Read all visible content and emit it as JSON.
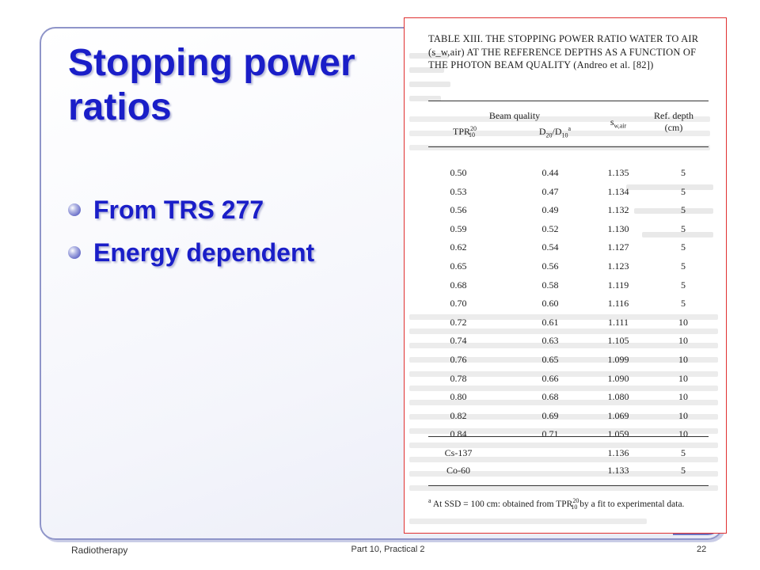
{
  "slide": {
    "title": "Stopping power ratios",
    "bullets": [
      "From TRS 277",
      "Energy dependent"
    ]
  },
  "footer": {
    "left": "Radiotherapy",
    "center": "Part 10, Practical 2",
    "page": "22"
  },
  "table": {
    "title": "TABLE XIII. THE STOPPING POWER RATIO WATER TO AIR (s_w,air) AT THE REFERENCE DEPTHS AS A FUNCTION OF THE PHOTON BEAM QUALITY (Andreo et al. [82])",
    "header": {
      "beam_quality": "Beam quality",
      "tpr": "TPR",
      "tpr_sup": "20",
      "tpr_sub": "10",
      "d20": "D",
      "d20_sub": "20",
      "d10": "/D",
      "d10_sub": "10",
      "d_sup": "a",
      "s": "s",
      "s_sub": "w,air",
      "ref_depth": "Ref. depth",
      "ref_unit": "(cm)"
    },
    "rows": [
      {
        "tpr": "0.50",
        "d": "0.44",
        "s": "1.135",
        "depth": "5"
      },
      {
        "tpr": "0.53",
        "d": "0.47",
        "s": "1.134",
        "depth": "5"
      },
      {
        "tpr": "0.56",
        "d": "0.49",
        "s": "1.132",
        "depth": "5"
      },
      {
        "tpr": "0.59",
        "d": "0.52",
        "s": "1.130",
        "depth": "5"
      },
      {
        "tpr": "0.62",
        "d": "0.54",
        "s": "1.127",
        "depth": "5"
      },
      {
        "tpr": "0.65",
        "d": "0.56",
        "s": "1.123",
        "depth": "5"
      },
      {
        "tpr": "0.68",
        "d": "0.58",
        "s": "1.119",
        "depth": "5"
      },
      {
        "tpr": "0.70",
        "d": "0.60",
        "s": "1.116",
        "depth": "5"
      },
      {
        "tpr": "0.72",
        "d": "0.61",
        "s": "1.111",
        "depth": "10"
      },
      {
        "tpr": "0.74",
        "d": "0.63",
        "s": "1.105",
        "depth": "10"
      },
      {
        "tpr": "0.76",
        "d": "0.65",
        "s": "1.099",
        "depth": "10"
      },
      {
        "tpr": "0.78",
        "d": "0.66",
        "s": "1.090",
        "depth": "10"
      },
      {
        "tpr": "0.80",
        "d": "0.68",
        "s": "1.080",
        "depth": "10"
      },
      {
        "tpr": "0.82",
        "d": "0.69",
        "s": "1.069",
        "depth": "10"
      },
      {
        "tpr": "0.84",
        "d": "0.71",
        "s": "1.059",
        "depth": "10"
      }
    ],
    "sources": [
      {
        "name": "Cs-137",
        "s": "1.136",
        "depth": "5"
      },
      {
        "name": "Co-60",
        "s": "1.133",
        "depth": "5"
      }
    ],
    "footnote_mark": "a",
    "footnote_a": "At SSD = 100 cm: obtained from TPR",
    "footnote_b": " by a fit to experimental data."
  },
  "colors": {
    "title_blue": "#1a1ec8",
    "frame_border": "#8f95c9",
    "panel_border": "#e03030"
  }
}
